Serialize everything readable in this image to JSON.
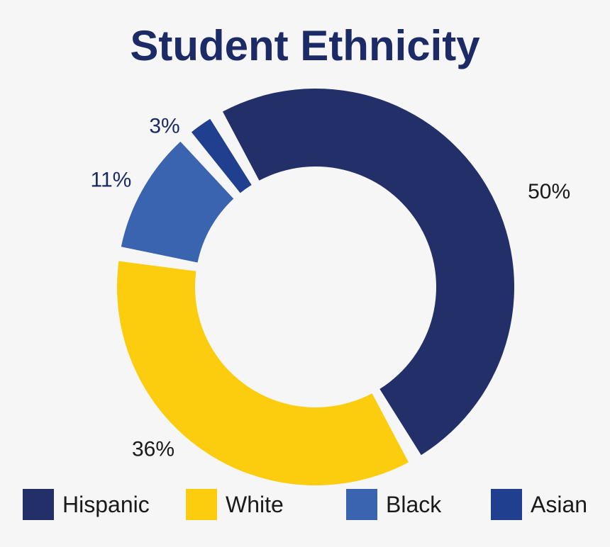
{
  "chart_data": {
    "type": "pie",
    "variant": "donut",
    "title": "Student Ethnicity",
    "slices": [
      {
        "name": "Hispanic",
        "value": 50,
        "label": "50%",
        "color": "#222f68"
      },
      {
        "name": "White",
        "value": 36,
        "label": "36%",
        "color": "#fbcd0e"
      },
      {
        "name": "Black",
        "value": 11,
        "label": "11%",
        "color": "#3a63b0"
      },
      {
        "name": "Asian",
        "value": 3,
        "label": "3%",
        "color": "#20408f"
      }
    ],
    "legend": "bottom",
    "label_color_dark": "#1c2a66",
    "label_color_plain": "#1a1a1a"
  }
}
